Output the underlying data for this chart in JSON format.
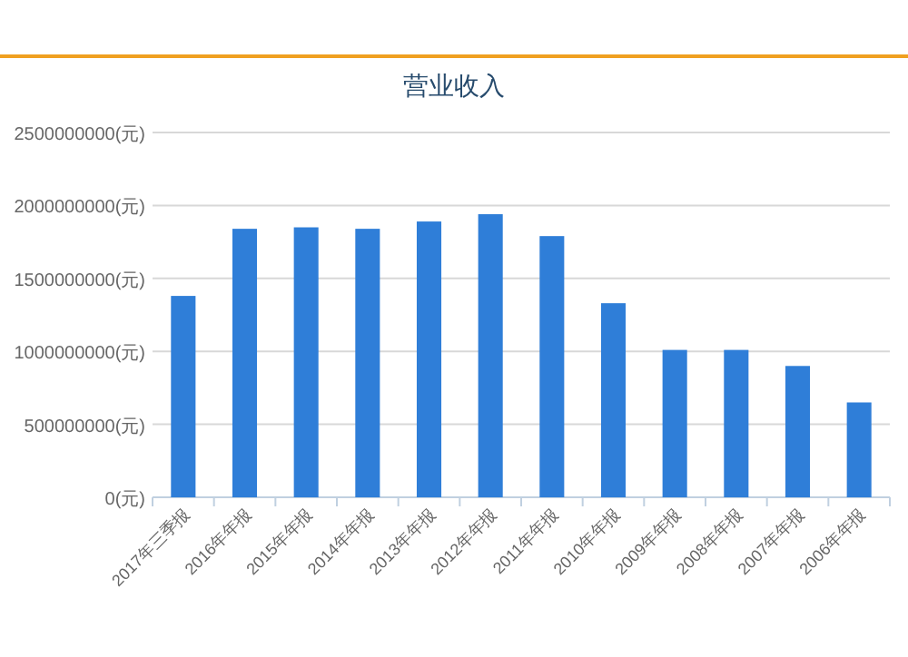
{
  "chart_data": {
    "type": "bar",
    "title": "营业收入",
    "categories": [
      "2017年三季报",
      "2016年年报",
      "2015年年报",
      "2014年年报",
      "2013年年报",
      "2012年年报",
      "2011年年报",
      "2010年年报",
      "2009年年报",
      "2008年年报",
      "2007年年报",
      "2006年年报"
    ],
    "values": [
      1380000000,
      1840000000,
      1850000000,
      1840000000,
      1890000000,
      1940000000,
      1790000000,
      1330000000,
      1010000000,
      1010000000,
      900000000,
      650000000
    ],
    "color": "#2f7ed8",
    "ylim": [
      0,
      2500000000
    ],
    "yticks": [
      {
        "value": 0,
        "label": "0(元)"
      },
      {
        "value": 500000000,
        "label": "500000000(元)"
      },
      {
        "value": 1000000000,
        "label": "1000000000(元)"
      },
      {
        "value": 1500000000,
        "label": "1500000000(元)"
      },
      {
        "value": 2000000000,
        "label": "2000000000(元)"
      },
      {
        "value": 2500000000,
        "label": "2500000000(元)"
      }
    ],
    "grid": "y"
  }
}
